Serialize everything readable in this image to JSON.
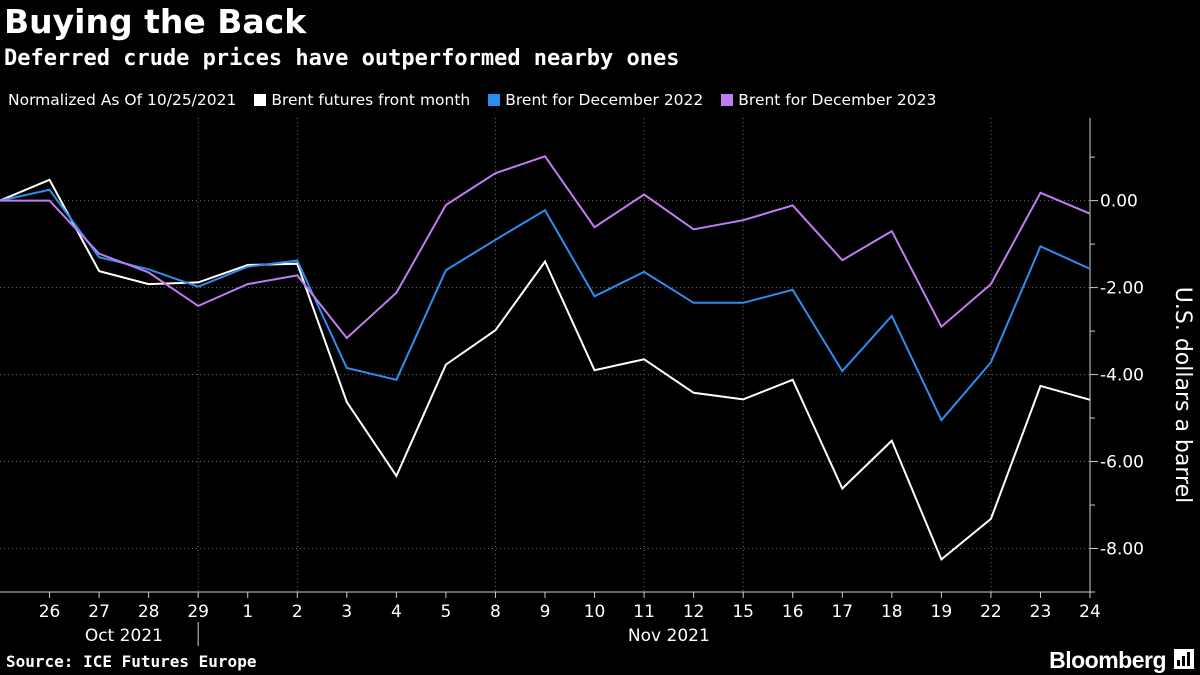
{
  "header": {
    "title": "Buying the Back",
    "subtitle": "Deferred crude prices have outperformed nearby ones"
  },
  "legend": {
    "note": "Normalized As Of 10/25/2021",
    "items": [
      {
        "label": "Brent futures front month",
        "color": "#ffffff"
      },
      {
        "label": "Brent for December 2022",
        "color": "#2d8ef0"
      },
      {
        "label": "Brent for December 2023",
        "color": "#c07cf2"
      }
    ]
  },
  "footer": {
    "source": "Source: ICE Futures Europe",
    "brand": "Bloomberg"
  },
  "chart_data": {
    "type": "line",
    "x": [
      "25",
      "26",
      "27",
      "28",
      "29",
      "1",
      "2",
      "3",
      "4",
      "5",
      "8",
      "9",
      "10",
      "11",
      "12",
      "15",
      "16",
      "17",
      "18",
      "19",
      "22",
      "23",
      "24"
    ],
    "x_tick_labels": [
      "26",
      "27",
      "28",
      "29",
      "1",
      "2",
      "3",
      "4",
      "5",
      "8",
      "9",
      "10",
      "11",
      "12",
      "15",
      "16",
      "17",
      "18",
      "19",
      "22",
      "23",
      "24"
    ],
    "x_group_labels": [
      {
        "label": "Oct 2021",
        "dates": [
          "26",
          "27",
          "28",
          "29"
        ]
      },
      {
        "label": "Nov 2021",
        "dates": [
          "1",
          "2",
          "3",
          "4",
          "5",
          "8",
          "9",
          "10",
          "11",
          "12",
          "15",
          "16",
          "17",
          "18",
          "19",
          "22",
          "23",
          "24"
        ]
      }
    ],
    "series": [
      {
        "name": "Brent futures front month",
        "color": "#ffffff",
        "values": [
          0.0,
          0.48,
          -1.62,
          -1.92,
          -1.88,
          -1.48,
          -1.45,
          -4.63,
          -6.33,
          -3.77,
          -2.98,
          -1.4,
          -3.9,
          -3.65,
          -4.42,
          -4.57,
          -4.12,
          -6.62,
          -5.52,
          -8.25,
          -7.32,
          -4.26,
          -4.58
        ]
      },
      {
        "name": "Brent for December 2022",
        "color": "#2d8ef0",
        "values": [
          0.0,
          0.25,
          -1.3,
          -1.58,
          -1.98,
          -1.52,
          -1.38,
          -3.85,
          -4.12,
          -1.6,
          -0.9,
          -0.22,
          -2.2,
          -1.64,
          -2.35,
          -2.35,
          -2.05,
          -3.92,
          -2.65,
          -5.05,
          -3.72,
          -1.05,
          -1.57
        ]
      },
      {
        "name": "Brent for December 2023",
        "color": "#c07cf2",
        "values": [
          0.0,
          0.0,
          -1.22,
          -1.65,
          -2.42,
          -1.92,
          -1.72,
          -3.16,
          -2.12,
          -0.1,
          0.63,
          1.02,
          -0.61,
          0.14,
          -0.66,
          -0.45,
          -0.11,
          -1.37,
          -0.7,
          -2.9,
          -1.92,
          0.18,
          -0.3
        ]
      }
    ],
    "ylabel": "U.S. dollars a barrel",
    "y_ticks": [
      0,
      -2,
      -4,
      -6,
      -8
    ],
    "y_tick_labels": [
      "0.00",
      "-2.00",
      "-4.00",
      "-6.00",
      "-8.00"
    ],
    "ylim": [
      -9.0,
      1.9
    ],
    "grid": "dotted vertical and horizontal",
    "legend_position": "top-left",
    "y_axis_position": "right"
  }
}
